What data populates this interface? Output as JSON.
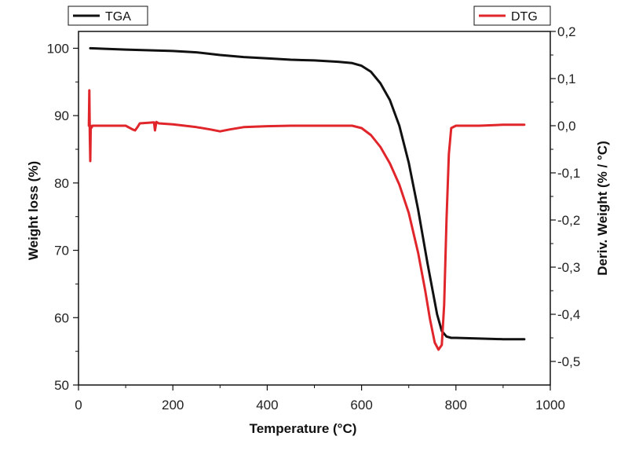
{
  "chart_data": {
    "type": "line",
    "title": "",
    "xlabel": "Temperature (°C)",
    "ylabel_left": "Weight loss (%)",
    "ylabel_right": "Deriv. Weight (% / °C)",
    "xlim": [
      0,
      1000
    ],
    "ylim_left": [
      50,
      102.5
    ],
    "ylim_right": [
      -0.55,
      0.2
    ],
    "x_ticks": [
      0,
      200,
      400,
      600,
      800,
      1000
    ],
    "y_left_ticks": [
      50,
      60,
      70,
      80,
      90,
      100
    ],
    "y_right_ticks": [
      0.2,
      0.1,
      0.0,
      -0.1,
      -0.2,
      -0.3,
      -0.4,
      -0.5
    ],
    "x_tick_labels": [
      "0",
      "200",
      "400",
      "600",
      "800",
      "1000"
    ],
    "y_left_tick_labels": [
      "50",
      "60",
      "70",
      "80",
      "90",
      "100"
    ],
    "y_right_tick_labels": [
      "0,2",
      "0,1",
      "0,0",
      "-0,1",
      "-0,2",
      "-0,3",
      "-0,4",
      "-0,5"
    ],
    "grid": false,
    "legend": [
      {
        "name": "TGA",
        "placement": "top-left"
      },
      {
        "name": "DTG",
        "placement": "top-right"
      }
    ],
    "series": [
      {
        "name": "TGA",
        "axis": "left",
        "color": "#111111",
        "x": [
          25,
          100,
          150,
          200,
          250,
          300,
          350,
          400,
          450,
          500,
          550,
          580,
          600,
          620,
          640,
          660,
          680,
          700,
          720,
          740,
          760,
          770,
          780,
          790,
          800,
          850,
          900,
          945
        ],
        "y": [
          100.0,
          99.8,
          99.7,
          99.6,
          99.4,
          99.0,
          98.7,
          98.5,
          98.3,
          98.2,
          98.0,
          97.8,
          97.4,
          96.5,
          94.8,
          92.3,
          88.5,
          83.0,
          76.0,
          68.0,
          60.5,
          58.0,
          57.2,
          57.0,
          57.0,
          56.9,
          56.8,
          56.8
        ]
      },
      {
        "name": "DTG",
        "axis": "right",
        "color": "#e0262b",
        "x": [
          22,
          23,
          24,
          25,
          26,
          27,
          30,
          50,
          100,
          115,
          120,
          125,
          130,
          160,
          162,
          165,
          170,
          200,
          250,
          280,
          300,
          320,
          350,
          400,
          450,
          500,
          550,
          580,
          600,
          620,
          640,
          660,
          680,
          700,
          720,
          735,
          745,
          755,
          763,
          770,
          775,
          780,
          785,
          790,
          800,
          850,
          900,
          945
        ],
        "y": [
          0.0,
          0.075,
          -0.02,
          -0.075,
          0.0,
          -0.005,
          0.0,
          0.0,
          0.0,
          -0.008,
          -0.01,
          -0.003,
          0.005,
          0.007,
          -0.01,
          0.008,
          0.005,
          0.003,
          -0.003,
          -0.008,
          -0.012,
          -0.008,
          -0.003,
          -0.001,
          0.0,
          0.0,
          0.0,
          0.0,
          -0.005,
          -0.02,
          -0.045,
          -0.08,
          -0.125,
          -0.185,
          -0.27,
          -0.35,
          -0.41,
          -0.46,
          -0.475,
          -0.465,
          -0.38,
          -0.2,
          -0.06,
          -0.005,
          0.0,
          0.0,
          0.002,
          0.002
        ]
      }
    ]
  }
}
